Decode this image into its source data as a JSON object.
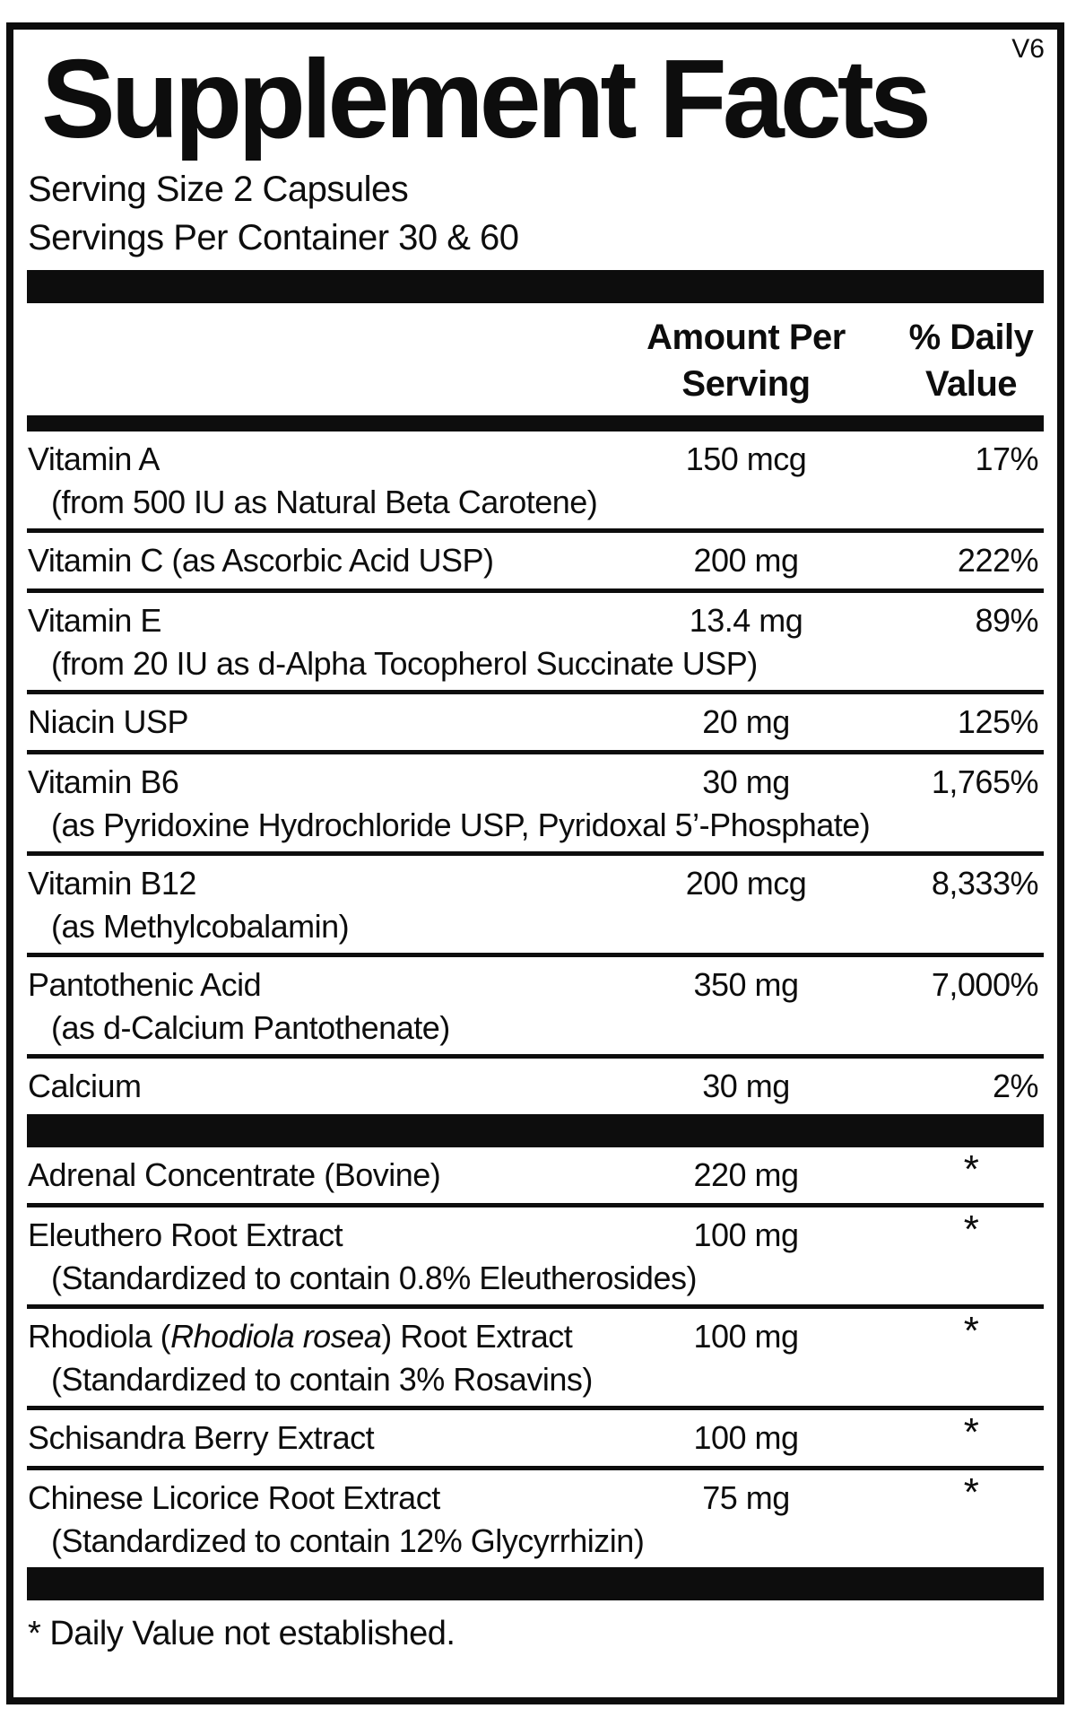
{
  "version_tag": "V6",
  "title": "Supplement Facts",
  "serving_size": "Serving Size 2 Capsules",
  "servings_per_container": "Servings Per Container 30 & 60",
  "columns": {
    "amount_lines": [
      "Amount Per",
      "Serving"
    ],
    "daily_value_lines": [
      "% Daily",
      "Value"
    ]
  },
  "sections": {
    "vitamins": {
      "rows": [
        {
          "name": "Vitamin A",
          "sub": "(from 500 IU as Natural Beta Carotene)",
          "amount": "150 mcg",
          "dv": "17%"
        },
        {
          "name": "Vitamin C (as Ascorbic Acid USP)",
          "amount": "200 mg",
          "dv": "222%"
        },
        {
          "name": "Vitamin E",
          "sub": "(from 20 IU as d-Alpha Tocopherol Succinate USP)",
          "amount": "13.4 mg",
          "dv": "89%"
        },
        {
          "name": "Niacin USP",
          "amount": "20 mg",
          "dv": "125%"
        },
        {
          "name": "Vitamin B6",
          "sub": "(as Pyridoxine Hydrochloride USP, Pyridoxal 5’-Phosphate)",
          "amount": "30 mg",
          "dv": "1,765%"
        },
        {
          "name": "Vitamin B12",
          "sub": "(as Methylcobalamin)",
          "amount": "200 mcg",
          "dv": "8,333%"
        },
        {
          "name": "Pantothenic Acid",
          "sub": "(as d-Calcium Pantothenate)",
          "amount": "350 mg",
          "dv": "7,000%"
        },
        {
          "name": "Calcium",
          "amount": "30 mg",
          "dv": "2%"
        }
      ]
    },
    "botanicals": {
      "rows": [
        {
          "name": "Adrenal Concentrate (Bovine)",
          "amount": "220 mg",
          "dv": "*"
        },
        {
          "name": "Eleuthero Root Extract",
          "sub": "(Standardized to contain 0.8% Eleutherosides)",
          "amount": "100 mg",
          "dv": "*"
        },
        {
          "name_parts": [
            "Rhodiola (",
            {
              "italic": "Rhodiola rosea"
            },
            ") Root Extract"
          ],
          "sub": "(Standardized to contain 3% Rosavins)",
          "amount": "100 mg",
          "dv": "*"
        },
        {
          "name": "Schisandra Berry Extract",
          "amount": "100 mg",
          "dv": "*"
        },
        {
          "name": "Chinese Licorice Root Extract",
          "sub": "(Standardized to contain 12% Glycyrrhizin)",
          "amount": "75 mg",
          "dv": "*"
        }
      ]
    }
  },
  "footnote": "* Daily Value not established.",
  "colors": {
    "ink": "#0d0d0d",
    "background": "#ffffff"
  }
}
